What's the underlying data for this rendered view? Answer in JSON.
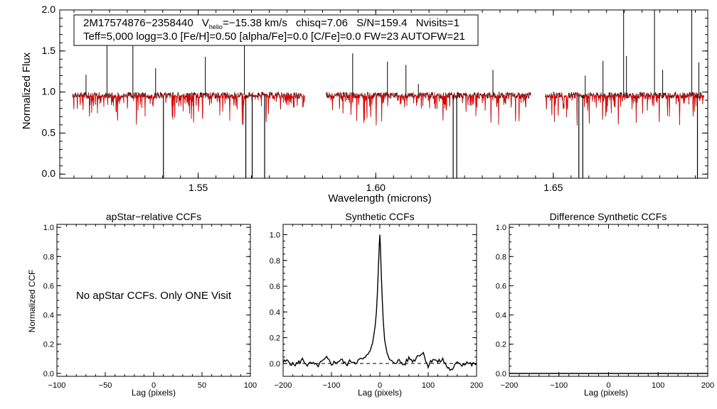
{
  "colors": {
    "observed": "#000000",
    "model": "#e00000",
    "axis": "#000000",
    "background": "#ffffff"
  },
  "chart_data": [
    {
      "type": "line",
      "name": "spectrum",
      "xlabel": "Wavelength (microns)",
      "ylabel": "Normalized Flux",
      "xlim": [
        1.511,
        1.6935
      ],
      "ylim": [
        -0.05,
        2.0
      ],
      "xticks": [
        1.55,
        1.6,
        1.65
      ],
      "xtick_labels": [
        "1.55",
        "1.60",
        "1.65"
      ],
      "yticks": [
        0.0,
        0.5,
        1.0,
        1.5,
        2.0
      ],
      "ytick_labels": [
        "0.0",
        "0.5",
        "1.0",
        "1.5",
        "2.0"
      ],
      "legend": {
        "star_id": "2M17574876−2358440",
        "vhelio_label": "V",
        "vhelio_sub": "helio",
        "vhelio_value": "=−15.38 km/s",
        "chisq": "chisq=7.06",
        "sn": "S/N=159.4",
        "nvisits": "Nvisits=1",
        "params": "Teff=5,000 logg=3.0 [Fe/H]=0.50 [alpha/Fe]=0.0 [C/Fe]=0.0 FW=23 AUTOFW=21"
      },
      "chips": [
        [
          1.5146,
          1.58
        ],
        [
          1.586,
          1.6437
        ],
        [
          1.6477,
          1.6925
        ]
      ],
      "series": [
        {
          "name": "observed spectrum",
          "color": "#000000",
          "continuum": 0.96
        },
        {
          "name": "synthetic best-fit",
          "color": "#e00000",
          "continuum": 0.96
        }
      ],
      "emission_spikes": [
        [
          1.5184,
          1.21
        ],
        [
          1.5243,
          1.62
        ],
        [
          1.5316,
          1.62
        ],
        [
          1.538,
          1.29
        ],
        [
          1.552,
          1.43
        ],
        [
          1.563,
          1.65
        ],
        [
          1.5935,
          1.47
        ],
        [
          1.6033,
          1.37
        ],
        [
          1.6085,
          1.33
        ],
        [
          1.612,
          1.1
        ],
        [
          1.633,
          1.27
        ],
        [
          1.659,
          1.2
        ],
        [
          1.664,
          1.38
        ],
        [
          1.6698,
          2.0
        ],
        [
          1.6706,
          1.44
        ],
        [
          1.6785,
          2.0
        ],
        [
          1.6808,
          1.27
        ],
        [
          1.689,
          2.0
        ],
        [
          1.691,
          1.36
        ]
      ],
      "absorption_lines": [
        [
          1.5402,
          0.0
        ],
        [
          1.5634,
          0.0
        ],
        [
          1.5652,
          0.0
        ],
        [
          1.5687,
          0.0
        ],
        [
          1.6218,
          0.0
        ],
        [
          1.6228,
          0.0
        ],
        [
          1.6572,
          0.0
        ],
        [
          1.6583,
          0.0
        ],
        [
          1.6906,
          0.0
        ]
      ]
    },
    {
      "type": "line",
      "name": "apstar-ccf",
      "title": "apStar−relative CCFs",
      "xlabel": "Lag (pixels)",
      "ylabel": "Normalized CCF",
      "xlim": [
        -100,
        100
      ],
      "ylim": [
        -0.02,
        1.02
      ],
      "xticks": [
        -100,
        -50,
        0,
        50,
        100
      ],
      "xtick_labels": [
        "−100",
        "−50",
        "0",
        "50",
        "100"
      ],
      "yticks": [
        0.0,
        0.2,
        0.4,
        0.6,
        0.8,
        1.0
      ],
      "ytick_labels": [
        "0.0",
        "0.2",
        "0.4",
        "0.6",
        "0.8",
        "1.0"
      ],
      "annotation": "No apStar CCFs.  Only ONE Visit",
      "series": []
    },
    {
      "type": "line",
      "name": "synthetic-ccf",
      "title": "Synthetic CCFs",
      "xlabel": "Lag (pixels)",
      "ylabel": "",
      "xlim": [
        -200,
        200
      ],
      "ylim": [
        -0.1,
        1.08
      ],
      "xticks": [
        -200,
        -100,
        0,
        100,
        200
      ],
      "xtick_labels": [
        "−200",
        "−100",
        "0",
        "100",
        "200"
      ],
      "yticks": [
        0.0,
        0.2,
        0.4,
        0.6,
        0.8,
        1.0
      ],
      "ytick_labels": [
        "0.0",
        "0.2",
        "0.4",
        "0.6",
        "0.8",
        "1.0"
      ],
      "zero_line": 0.0,
      "series": [
        {
          "name": "synthetic CCF",
          "x": [
            -200,
            -190,
            -180,
            -170,
            -160,
            -150,
            -140,
            -130,
            -120,
            -110,
            -100,
            -90,
            -80,
            -70,
            -60,
            -50,
            -40,
            -30,
            -20,
            -15,
            -10,
            -7,
            -5,
            -3,
            -1,
            0,
            1,
            3,
            5,
            7,
            10,
            15,
            20,
            30,
            40,
            50,
            60,
            70,
            80,
            90,
            100,
            110,
            120,
            130,
            140,
            150,
            160,
            170,
            180,
            190,
            200
          ],
          "y": [
            0.01,
            0.02,
            -0.01,
            0.0,
            0.03,
            -0.01,
            0.0,
            -0.02,
            0.01,
            0.04,
            0.0,
            0.01,
            0.03,
            -0.01,
            0.02,
            0.01,
            0.03,
            0.04,
            0.1,
            0.16,
            0.28,
            0.4,
            0.55,
            0.75,
            0.93,
            1.0,
            0.92,
            0.7,
            0.5,
            0.33,
            0.18,
            0.08,
            0.03,
            0.01,
            0.02,
            -0.01,
            0.04,
            0.02,
            0.07,
            0.08,
            -0.02,
            0.04,
            0.01,
            0.03,
            -0.03,
            -0.06,
            0.02,
            -0.01,
            0.01,
            -0.01,
            0.0
          ]
        }
      ]
    },
    {
      "type": "line",
      "name": "difference-ccf",
      "title": "Difference Synthetic CCFs",
      "xlabel": "Lag (pixels)",
      "ylabel": "",
      "xlim": [
        -200,
        200
      ],
      "ylim": [
        -0.02,
        1.02
      ],
      "xticks": [
        -200,
        -100,
        0,
        100,
        200
      ],
      "xtick_labels": [
        "−200",
        "−100",
        "0",
        "100",
        "200"
      ],
      "yticks": [
        0.0,
        0.2,
        0.4,
        0.6,
        0.8,
        1.0
      ],
      "ytick_labels": [
        "0.0",
        "0.2",
        "0.4",
        "0.6",
        "0.8",
        "1.0"
      ],
      "series": [
        {
          "name": "difference CCF",
          "x": [
            -200,
            200
          ],
          "y": [
            0.0,
            0.0
          ]
        }
      ]
    }
  ]
}
